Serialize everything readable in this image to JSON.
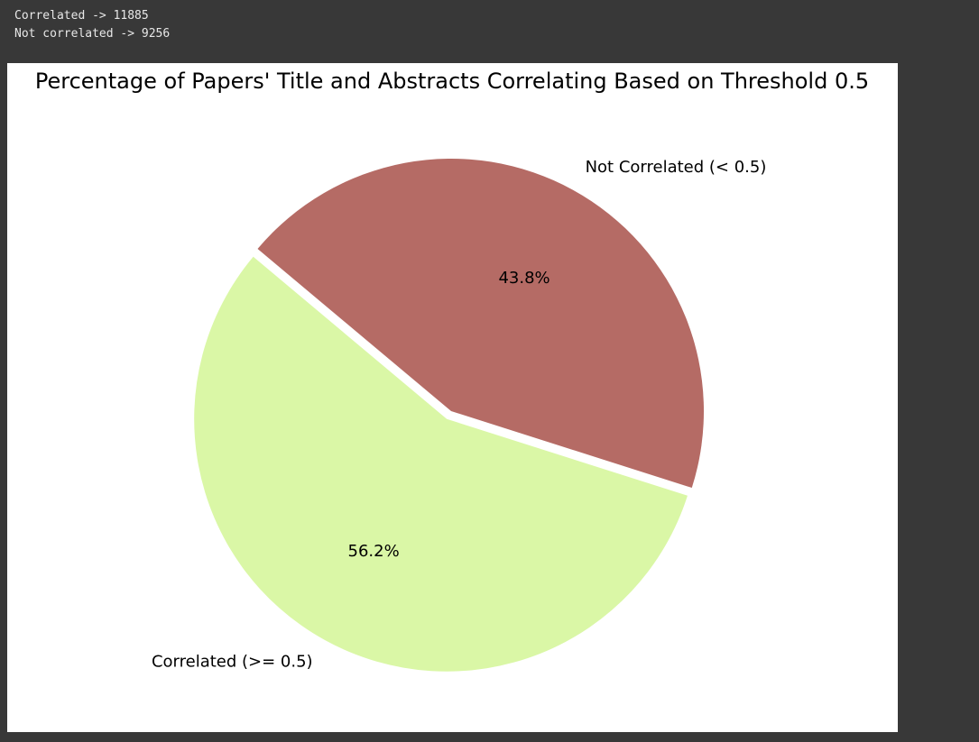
{
  "console_output": [
    "Correlated -> 11885",
    "Not correlated -> 9256"
  ],
  "chart_data": {
    "type": "pie",
    "title": "Percentage of Papers' Title and Abstracts Correlating Based on Threshold 0.5",
    "categories": [
      "Correlated (>= 0.5)",
      "Not Correlated (< 0.5)"
    ],
    "values": [
      56.2,
      43.8
    ],
    "value_labels": [
      "56.2%",
      "43.8%"
    ],
    "colors": [
      "#daf7a6",
      "#b56b65"
    ]
  }
}
